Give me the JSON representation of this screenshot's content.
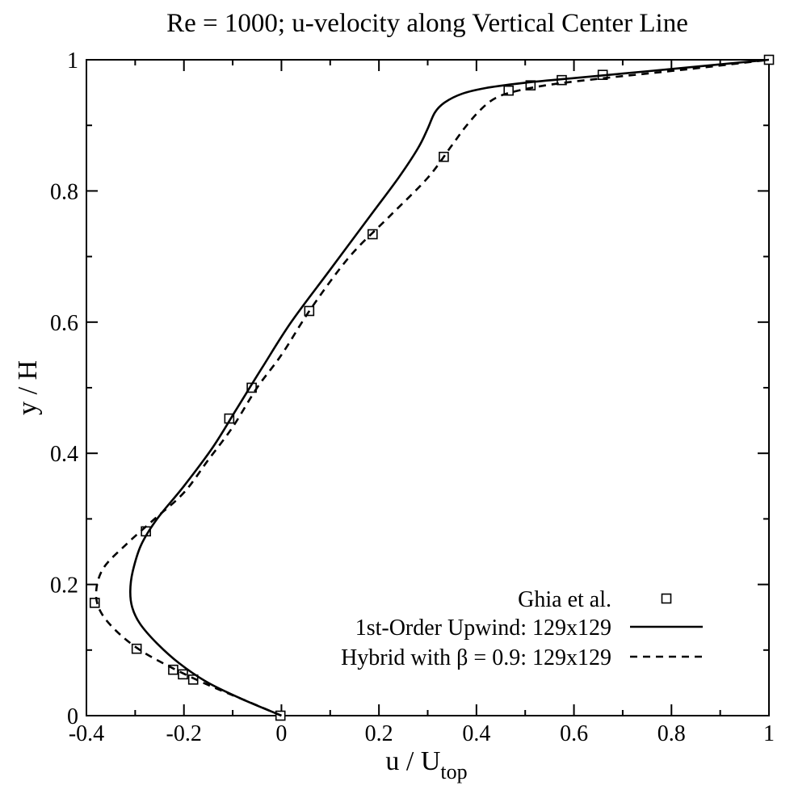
{
  "chart_data": {
    "type": "line",
    "title": "Re = 1000; u-velocity along Vertical Center Line",
    "xlabel": {
      "main": "u / U",
      "sub": "top"
    },
    "ylabel": "y / H",
    "xlim": [
      -0.4,
      1.0
    ],
    "ylim": [
      0.0,
      1.0
    ],
    "xticks": [
      -0.4,
      -0.2,
      0,
      0.2,
      0.4,
      0.6,
      0.8,
      1
    ],
    "xtick_labels": [
      "-0.4",
      "-0.2",
      "0",
      "0.2",
      "0.4",
      "0.6",
      "0.8",
      "1"
    ],
    "yticks": [
      0,
      0.2,
      0.4,
      0.6,
      0.8,
      1
    ],
    "ytick_labels": [
      "0",
      "0.2",
      "0.4",
      "0.6",
      "0.8",
      "1"
    ],
    "grid": false,
    "legend_position": "bottom-right",
    "series": [
      {
        "name": "Ghia et al.",
        "style": "markers-square",
        "x": [
          -0.002,
          -0.181,
          -0.202,
          -0.222,
          -0.297,
          -0.383,
          -0.278,
          -0.107,
          -0.061,
          0.057,
          0.187,
          0.333,
          0.466,
          0.511,
          0.575,
          0.659,
          1.0
        ],
        "y": [
          0.0,
          0.055,
          0.063,
          0.07,
          0.102,
          0.172,
          0.281,
          0.453,
          0.5,
          0.617,
          0.734,
          0.852,
          0.953,
          0.961,
          0.969,
          0.977,
          1.0
        ]
      },
      {
        "name": "1st-Order Upwind: 129x129",
        "style": "solid",
        "x": [
          0.0,
          -0.08,
          -0.15,
          -0.21,
          -0.255,
          -0.29,
          -0.306,
          -0.31,
          -0.305,
          -0.288,
          -0.255,
          -0.2,
          -0.14,
          -0.09,
          -0.04,
          0.02,
          0.1,
          0.18,
          0.24,
          0.28,
          0.3,
          0.315,
          0.335,
          0.37,
          0.42,
          0.5,
          0.6,
          0.7,
          0.8,
          0.9,
          1.0
        ],
        "y": [
          0.0,
          0.025,
          0.05,
          0.08,
          0.11,
          0.14,
          0.165,
          0.19,
          0.22,
          0.26,
          0.3,
          0.35,
          0.41,
          0.47,
          0.53,
          0.6,
          0.68,
          0.76,
          0.82,
          0.865,
          0.895,
          0.92,
          0.935,
          0.948,
          0.957,
          0.965,
          0.972,
          0.979,
          0.986,
          0.993,
          1.0
        ]
      },
      {
        "name": "Hybrid with β = 0.9: 129x129",
        "style": "dashed",
        "x": [
          0.0,
          -0.08,
          -0.16,
          -0.23,
          -0.29,
          -0.34,
          -0.372,
          -0.38,
          -0.365,
          -0.32,
          -0.26,
          -0.2,
          -0.15,
          -0.1,
          -0.05,
          0.0,
          0.06,
          0.14,
          0.22,
          0.3,
          0.35,
          0.38,
          0.41,
          0.44,
          0.48,
          0.55,
          0.65,
          0.75,
          0.85,
          1.0
        ],
        "y": [
          0.0,
          0.025,
          0.05,
          0.075,
          0.1,
          0.13,
          0.16,
          0.19,
          0.225,
          0.26,
          0.3,
          0.34,
          0.39,
          0.44,
          0.5,
          0.55,
          0.62,
          0.7,
          0.76,
          0.82,
          0.87,
          0.9,
          0.925,
          0.942,
          0.952,
          0.962,
          0.971,
          0.979,
          0.987,
          1.0
        ]
      }
    ]
  }
}
